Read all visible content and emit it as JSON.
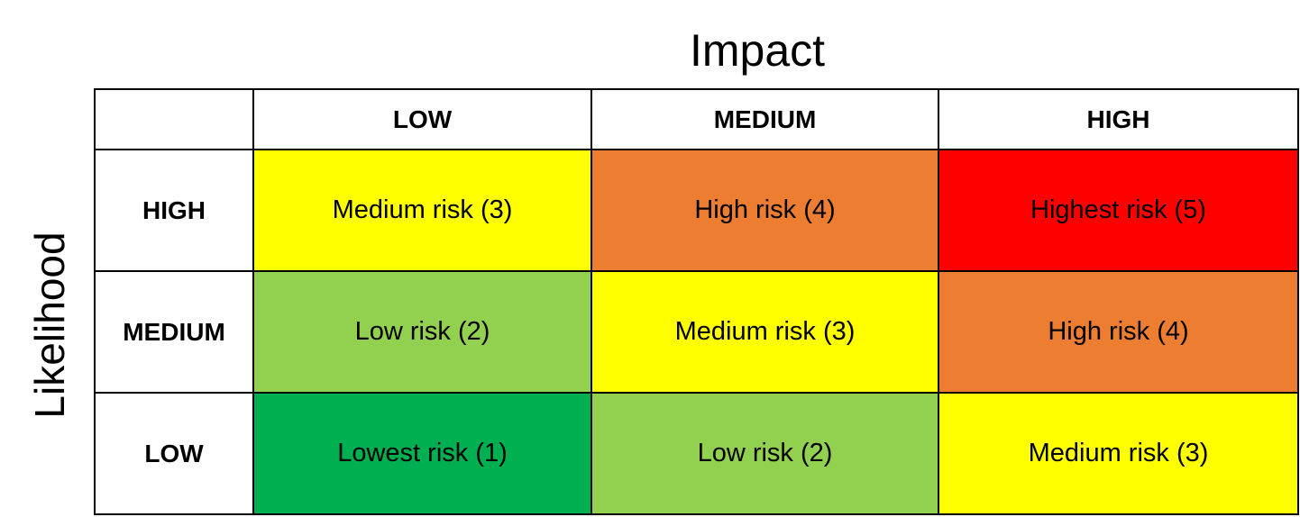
{
  "impact_label": "Impact",
  "likelihood_label": "Likelihood",
  "columns": [
    "LOW",
    "MEDIUM",
    "HIGH"
  ],
  "rows": [
    {
      "label": "HIGH",
      "cells": [
        {
          "text": "Medium risk (3)",
          "color": "#FFFF00"
        },
        {
          "text": "High risk (4)",
          "color": "#ED7D31"
        },
        {
          "text": "Highest risk (5)",
          "color": "#FF0000"
        }
      ]
    },
    {
      "label": "MEDIUM",
      "cells": [
        {
          "text": "Low risk (2)",
          "color": "#92D050"
        },
        {
          "text": "Medium risk (3)",
          "color": "#FFFF00"
        },
        {
          "text": "High risk (4)",
          "color": "#ED7D31"
        }
      ]
    },
    {
      "label": "LOW",
      "cells": [
        {
          "text": "Lowest risk (1)",
          "color": "#00B050"
        },
        {
          "text": "Low risk (2)",
          "color": "#92D050"
        },
        {
          "text": "Medium risk (3)",
          "color": "#FFFF00"
        }
      ]
    }
  ]
}
